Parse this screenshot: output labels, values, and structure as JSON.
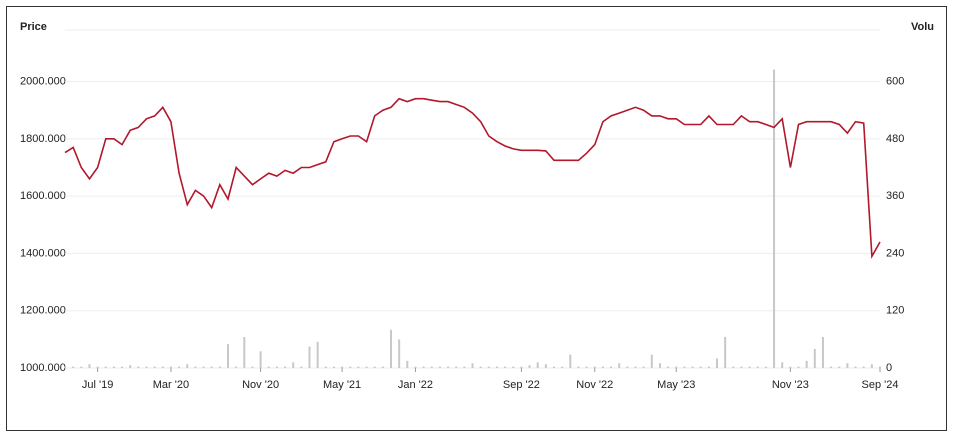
{
  "chart_data": {
    "type": "line",
    "y_label": "Price",
    "y2_label": "Volu",
    "xlim": [
      0,
      100
    ],
    "xticks": [
      {
        "value": 4,
        "label": "Jul '19"
      },
      {
        "value": 13,
        "label": "Mar '20"
      },
      {
        "value": 24,
        "label": "Nov '20"
      },
      {
        "value": 34,
        "label": "May '21"
      },
      {
        "value": 43,
        "label": "Jan '22"
      },
      {
        "value": 56,
        "label": "Sep '22"
      },
      {
        "value": 65,
        "label": "Nov '22"
      },
      {
        "value": 75,
        "label": "May '23"
      },
      {
        "value": 89,
        "label": "Nov '23"
      },
      {
        "value": 100,
        "label": "Sep '24"
      }
    ],
    "ylim": [
      1000,
      2180
    ],
    "yticks": [
      {
        "value": 1000,
        "label": "1000.000"
      },
      {
        "value": 1200,
        "label": "1200.000"
      },
      {
        "value": 1400,
        "label": "1400.000"
      },
      {
        "value": 1600,
        "label": "1600.000"
      },
      {
        "value": 1800,
        "label": "1800.000"
      },
      {
        "value": 2000,
        "label": "2000.000"
      }
    ],
    "y2lim": [
      0,
      708
    ],
    "y2ticks": [
      0,
      120,
      240,
      360,
      480,
      600
    ],
    "grid": true,
    "series": [
      {
        "color": "#b2182b",
        "values": [
          1752,
          1770,
          1700,
          1660,
          1700,
          1800,
          1800,
          1780,
          1830,
          1840,
          1870,
          1880,
          1910,
          1860,
          1680,
          1570,
          1620,
          1600,
          1560,
          1640,
          1590,
          1700,
          1670,
          1640,
          1660,
          1680,
          1670,
          1690,
          1680,
          1700,
          1700,
          1710,
          1720,
          1790,
          1800,
          1810,
          1810,
          1790,
          1880,
          1900,
          1910,
          1940,
          1930,
          1940,
          1940,
          1935,
          1930,
          1930,
          1920,
          1910,
          1890,
          1860,
          1810,
          1790,
          1775,
          1765,
          1760,
          1760,
          1760,
          1758,
          1725,
          1725,
          1725,
          1725,
          1750,
          1780,
          1860,
          1880,
          1890,
          1900,
          1910,
          1900,
          1880,
          1880,
          1870,
          1870,
          1850,
          1850,
          1850,
          1880,
          1850,
          1850,
          1850,
          1880,
          1860,
          1860,
          1850,
          1840,
          1870,
          1700,
          1850,
          1860,
          1860,
          1860,
          1860,
          1850,
          1820,
          1860,
          1855,
          1390,
          1440
        ]
      },
      {
        "axis": "y2",
        "color": "#c8c8c8",
        "values": [
          3,
          3,
          3,
          8,
          3,
          3,
          3,
          3,
          6,
          3,
          3,
          3,
          3,
          3,
          3,
          8,
          3,
          3,
          3,
          3,
          50,
          3,
          65,
          3,
          35,
          3,
          3,
          3,
          12,
          3,
          45,
          55,
          3,
          3,
          3,
          3,
          3,
          3,
          3,
          3,
          80,
          60,
          15,
          3,
          3,
          3,
          3,
          3,
          3,
          3,
          10,
          3,
          3,
          3,
          3,
          3,
          3,
          6,
          12,
          8,
          3,
          3,
          28,
          3,
          3,
          3,
          3,
          3,
          10,
          3,
          3,
          3,
          28,
          10,
          3,
          3,
          3,
          3,
          3,
          3,
          20,
          65,
          3,
          3,
          3,
          3,
          3,
          625,
          12,
          3,
          3,
          15,
          40,
          65,
          3,
          3,
          10,
          3,
          3,
          8,
          3
        ]
      }
    ]
  }
}
